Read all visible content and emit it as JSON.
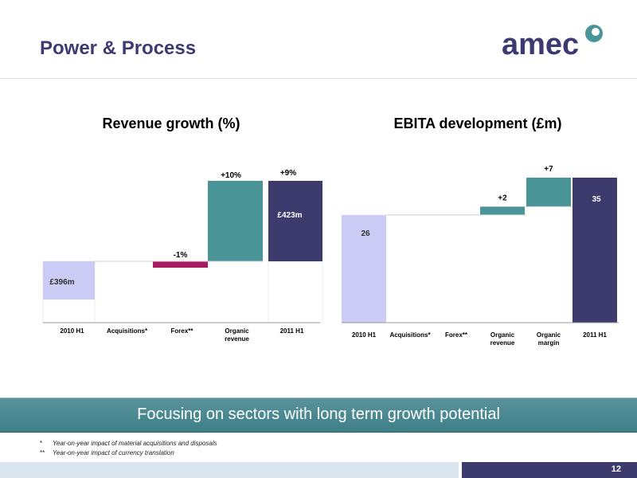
{
  "header": {
    "title": "Power & Process"
  },
  "logo": {
    "text": "amec"
  },
  "colors": {
    "brand": "#3d3a73",
    "teal": "#4a9598",
    "lilac": "#cbcbf5",
    "magenta": "#a8195f",
    "navy": "#3d3a6e"
  },
  "chart_data": [
    {
      "type": "bar",
      "title": "Revenue growth (%)",
      "categories": [
        "2010 H1",
        "Acquisitions*",
        "Forex**",
        "Organic revenue",
        "2011 H1"
      ],
      "values": [
        396,
        0,
        -1,
        10,
        423
      ],
      "value_labels": [
        "£396m",
        "",
        "-1%",
        "+10%",
        "£423m"
      ],
      "total_change_label": "+9%",
      "units": "£m / %",
      "colors": [
        "#cbcbf5",
        "#ffffff",
        "#a8195f",
        "#4a9598",
        "#3d3a6e"
      ]
    },
    {
      "type": "bar",
      "title": "EBITA development (£m)",
      "categories": [
        "2010 H1",
        "Acquisitions*",
        "Forex**",
        "Organic revenue",
        "Organic margin",
        "2011 H1"
      ],
      "values": [
        26,
        0,
        0,
        2,
        7,
        35
      ],
      "value_labels": [
        "26",
        "",
        "",
        "+2",
        "+7",
        "35"
      ],
      "units": "£m",
      "colors": [
        "#cbcbf5",
        "#ffffff",
        "#ffffff",
        "#4a9598",
        "#4a9598",
        "#3d3a6e"
      ]
    }
  ],
  "banner": {
    "text": "Focusing on sectors with long term growth potential"
  },
  "footnotes": [
    {
      "mark": "*",
      "text": "Year-on-year impact of material acquisitions and disposals"
    },
    {
      "mark": "**",
      "text": "Year-on-year impact of currency translation"
    }
  ],
  "footer": {
    "page_number": "12"
  }
}
